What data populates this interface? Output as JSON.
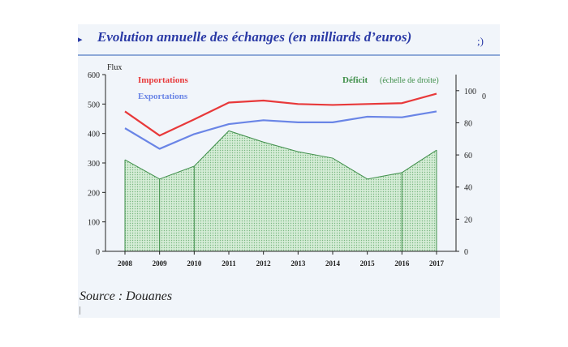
{
  "title": "Evolution annuelle des échanges (en milliards d’euros)",
  "source": "Source : Douanes",
  "chart_data": {
    "type": "line",
    "categories": [
      "2008",
      "2009",
      "2010",
      "2011",
      "2012",
      "2013",
      "2014",
      "2015",
      "2016",
      "2017"
    ],
    "ylabel": "Flux",
    "ylim": [
      0,
      600
    ],
    "y_ticks": [
      "0",
      "100",
      "200",
      "300",
      "400",
      "500",
      "600"
    ],
    "y2lim": [
      0,
      110
    ],
    "y2_ticks": [
      "0",
      "20",
      "40",
      "60",
      "80",
      "100"
    ],
    "series": [
      {
        "name": "Importations",
        "type": "line",
        "axis": "left",
        "color": "#e8393a",
        "values": [
          475,
          393,
          448,
          505,
          512,
          500,
          497,
          500,
          503,
          535
        ]
      },
      {
        "name": "Exportations",
        "type": "line",
        "axis": "left",
        "color": "#6a85e6",
        "values": [
          418,
          348,
          398,
          432,
          445,
          438,
          438,
          457,
          455,
          475
        ]
      },
      {
        "name": "Déficit",
        "type": "area",
        "axis": "right",
        "color": "#3f8f4a",
        "values": [
          57,
          45,
          53,
          75,
          68,
          62,
          58,
          45,
          49,
          63
        ]
      }
    ],
    "legend": [
      {
        "label": "Importations",
        "color": "#e8393a",
        "position": "top-left"
      },
      {
        "label": "Exportations",
        "color": "#6a85e6",
        "position": "top-left"
      },
      {
        "label": "Déficit",
        "note": "(échelle de droite)",
        "color": "#3f8f4a",
        "position": "top-right"
      }
    ],
    "grid": false
  }
}
